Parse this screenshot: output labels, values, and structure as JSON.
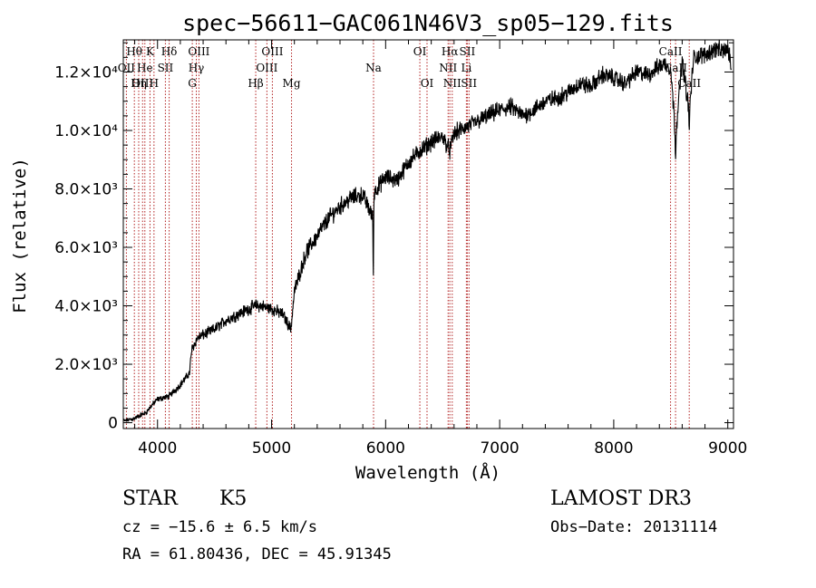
{
  "chart_data": {
    "type": "line",
    "title": "spec−56611−GAC061N46V3_sp05−129.fits",
    "xlabel": "Wavelength (Å)",
    "ylabel": "Flux (relative)",
    "xlim": [
      3700,
      9050
    ],
    "ylim": [
      -200,
      13100
    ],
    "x_ticks": [
      4000,
      5000,
      6000,
      7000,
      8000,
      9000
    ],
    "y_ticks": [
      {
        "value": 0,
        "label": "0"
      },
      {
        "value": 2000,
        "label": "2.0×10³"
      },
      {
        "value": 4000,
        "label": "4.0×10³"
      },
      {
        "value": 6000,
        "label": "6.0×10³"
      },
      {
        "value": 8000,
        "label": "8.0×10³"
      },
      {
        "value": 10000,
        "label": "1.0×10⁴"
      },
      {
        "value": 12000,
        "label": "1.2×10⁴"
      }
    ],
    "spectrum": {
      "x": [
        3700,
        3800,
        3900,
        3950,
        4000,
        4100,
        4200,
        4280,
        4300,
        4350,
        4400,
        4500,
        4600,
        4700,
        4800,
        4860,
        4900,
        5000,
        5100,
        5170,
        5200,
        5300,
        5400,
        5500,
        5600,
        5700,
        5800,
        5890,
        5900,
        6000,
        6100,
        6200,
        6300,
        6400,
        6500,
        6563,
        6600,
        6700,
        6800,
        6900,
        7000,
        7100,
        7200,
        7300,
        7400,
        7500,
        7600,
        7700,
        7800,
        7900,
        8000,
        8100,
        8200,
        8300,
        8400,
        8450,
        8500,
        8542,
        8600,
        8662,
        8700,
        8800,
        8900,
        8950,
        9000,
        9030
      ],
      "y": [
        50,
        150,
        350,
        600,
        800,
        900,
        1300,
        1700,
        2500,
        2900,
        3000,
        3200,
        3500,
        3700,
        3900,
        4000,
        4000,
        3900,
        3700,
        3200,
        4500,
        5800,
        6400,
        7000,
        7400,
        7700,
        7800,
        7000,
        7900,
        8400,
        8300,
        8900,
        9300,
        9600,
        9800,
        9300,
        9900,
        10100,
        10300,
        10500,
        10700,
        10800,
        10500,
        10700,
        11000,
        11100,
        11300,
        11600,
        11500,
        11900,
        11800,
        11600,
        12000,
        11900,
        12200,
        12300,
        12100,
        9800,
        12400,
        10600,
        12500,
        12600,
        12800,
        12700,
        12800,
        12200
      ],
      "noise_amplitude": 450,
      "sharp_absorption_lines": [
        {
          "name": "Na",
          "x": 5892,
          "depth_to": 5000
        },
        {
          "name": "CaII",
          "x": 8542,
          "depth_to": 9000
        },
        {
          "name": "CaII",
          "x": 8662,
          "depth_to": 10000
        }
      ]
    },
    "spectral_lines": [
      {
        "label": "Hθ",
        "x": 3797,
        "row": 0
      },
      {
        "label": "OII",
        "x": 3727,
        "row": 1
      },
      {
        "label": "OIII",
        "x": 3869,
        "row": 2
      },
      {
        "label": "He",
        "x": 3889,
        "row": 1
      },
      {
        "label": "Hη",
        "x": 3835,
        "row": 2
      },
      {
        "label": "K",
        "x": 3934,
        "row": 0
      },
      {
        "label": "SII",
        "x": 4069,
        "row": 1
      },
      {
        "label": "H",
        "x": 3969,
        "row": 2
      },
      {
        "label": "Hδ",
        "x": 4102,
        "row": 0
      },
      {
        "label": "OIII",
        "x": 4363,
        "row": 0
      },
      {
        "label": "Hγ",
        "x": 4340,
        "row": 1
      },
      {
        "label": "G",
        "x": 4305,
        "row": 2
      },
      {
        "label": "Hβ",
        "x": 4861,
        "row": 2
      },
      {
        "label": "OIII",
        "x": 5007,
        "row": 0
      },
      {
        "label": "OIII",
        "x": 4959,
        "row": 1
      },
      {
        "label": "Mg",
        "x": 5175,
        "row": 2
      },
      {
        "label": "Na",
        "x": 5894,
        "row": 1
      },
      {
        "label": "OI",
        "x": 6300,
        "row": 0
      },
      {
        "label": "OI",
        "x": 6363,
        "row": 2
      },
      {
        "label": "Hα",
        "x": 6563,
        "row": 0
      },
      {
        "label": "NII",
        "x": 6548,
        "row": 1
      },
      {
        "label": "NII",
        "x": 6584,
        "row": 2
      },
      {
        "label": "SII",
        "x": 6716,
        "row": 0
      },
      {
        "label": "Li",
        "x": 6708,
        "row": 1
      },
      {
        "label": "SII",
        "x": 6731,
        "row": 2
      },
      {
        "label": "CaII",
        "x": 8498,
        "row": 0
      },
      {
        "label": "CaII",
        "x": 8542,
        "row": 1
      },
      {
        "label": "CaII",
        "x": 8662,
        "row": 2
      }
    ]
  },
  "info": {
    "object_class": "STAR",
    "subclass": "K5",
    "survey": "LAMOST DR3",
    "redshift": "cz = −15.6 ± 6.5 km/s",
    "obs_date": "Obs−Date: 20131114",
    "coords": "RA =  61.80436, DEC =  45.91345"
  }
}
